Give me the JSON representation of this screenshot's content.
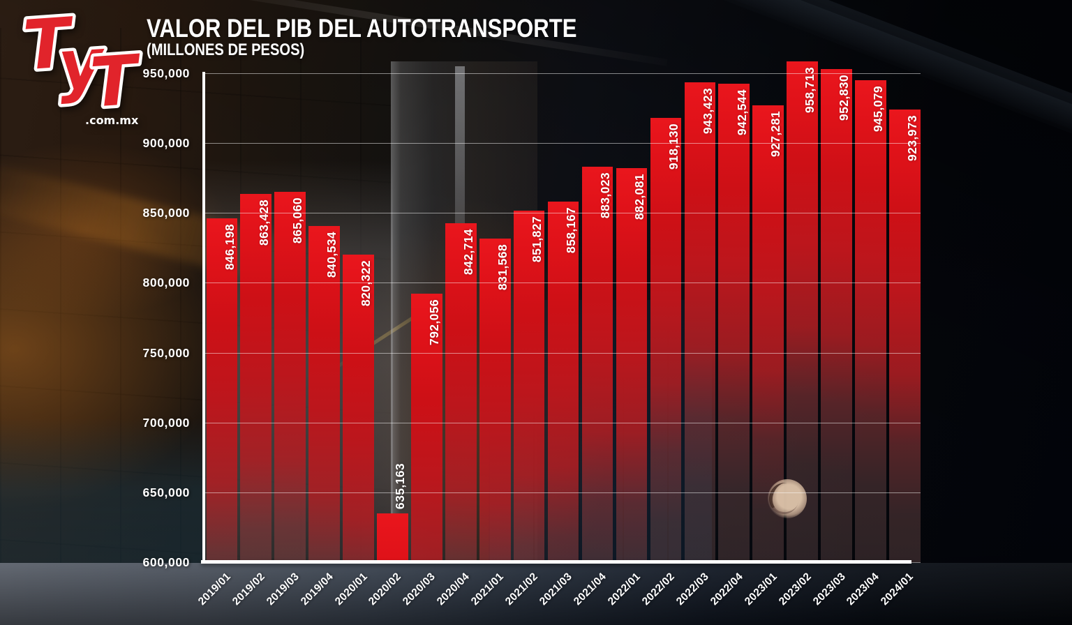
{
  "logo": {
    "letters": [
      "T",
      "y",
      "T"
    ],
    "domain": ".com.mx",
    "red": "#e1242b"
  },
  "chart_data": {
    "type": "bar",
    "title": "VALOR DEL PIB DEL AUTOTRANSPORTE",
    "subtitle": "(MILLONES DE PESOS)",
    "categories": [
      "2019/01",
      "2019/02",
      "2019/03",
      "2019/04",
      "2020/01",
      "2020/02",
      "2020/03",
      "2020/04",
      "2021/01",
      "2021/02",
      "2021/03",
      "2021/04",
      "2022/01",
      "2022/02",
      "2022/03",
      "2022/04",
      "2023/01",
      "2023/02",
      "2023/03",
      "2023/04",
      "2024/01"
    ],
    "values": [
      846198,
      863428,
      865060,
      840534,
      820322,
      635163,
      792056,
      842714,
      831568,
      851827,
      858167,
      883023,
      882081,
      918130,
      943423,
      942544,
      927281,
      958713,
      952830,
      945079,
      923973
    ],
    "value_labels": [
      "846,198",
      "863,428",
      "865,060",
      "840,534",
      "820,322",
      "635,163",
      "792,056",
      "842,714",
      "831,568",
      "851,827",
      "858,167",
      "883,023",
      "882,081",
      "918,130",
      "943,423",
      "942,544",
      "927,281",
      "958,713",
      "952,830",
      "945,079",
      "923,973"
    ],
    "y_ticks": [
      {
        "label": "950,000",
        "value": 950000
      },
      {
        "label": "900,000",
        "value": 900000
      },
      {
        "label": "850,000",
        "value": 850000
      },
      {
        "label": "800,000",
        "value": 800000
      },
      {
        "label": "750,000",
        "value": 750000
      },
      {
        "label": "700,000",
        "value": 700000
      },
      {
        "label": "650,000",
        "value": 650000
      },
      {
        "label": "600,000",
        "value": 600000
      }
    ],
    "ylim": [
      600000,
      950000
    ],
    "grid": true,
    "legend": false,
    "colors": {
      "bar_red": "#e8161d",
      "label_white": "#ffffff",
      "axis_white": "#ffffff",
      "background_dark": "#0a0c12"
    }
  }
}
